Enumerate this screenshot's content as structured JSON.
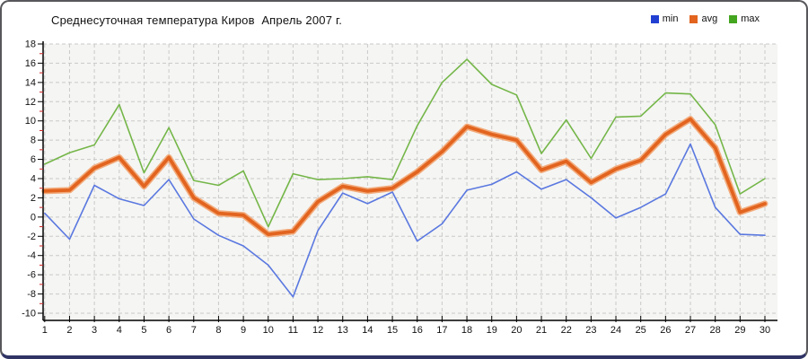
{
  "header": {
    "title": "Среднесуточная температура Киров  Апрель 2007 г."
  },
  "legend": [
    {
      "label": "min",
      "color": "#2140d2"
    },
    {
      "label": "avg",
      "color": "#e2641f"
    },
    {
      "label": "max",
      "color": "#44a51f"
    }
  ],
  "chart_data": {
    "type": "line",
    "title": "Среднесуточная температура Киров  Апрель 2007 г.",
    "x": [
      1,
      2,
      3,
      4,
      5,
      6,
      7,
      8,
      9,
      10,
      11,
      12,
      13,
      14,
      15,
      16,
      17,
      18,
      19,
      20,
      21,
      22,
      23,
      24,
      25,
      26,
      27,
      28,
      29,
      30
    ],
    "series": [
      {
        "name": "min",
        "color": "#5a78e0",
        "width": 1.6,
        "values": [
          0.4,
          -2.3,
          3.3,
          1.9,
          1.2,
          3.9,
          -0.2,
          -1.9,
          -3.0,
          -5.0,
          -8.3,
          -1.4,
          2.5,
          1.4,
          2.6,
          -2.5,
          -0.7,
          2.8,
          3.4,
          4.7,
          2.9,
          3.9,
          2.0,
          -0.1,
          1.0,
          2.4,
          7.6,
          1.0,
          -1.8,
          -1.9
        ]
      },
      {
        "name": "avg",
        "color": "#e2641f",
        "halo": "#f2ab7c",
        "width": 3.8,
        "values": [
          2.7,
          2.8,
          5.1,
          6.2,
          3.2,
          6.2,
          2.0,
          0.4,
          0.2,
          -1.8,
          -1.5,
          1.6,
          3.2,
          2.7,
          3.0,
          4.7,
          6.8,
          9.4,
          8.6,
          8.0,
          4.9,
          5.8,
          3.6,
          5.0,
          5.9,
          8.6,
          10.2,
          7.2,
          0.5,
          1.4
        ]
      },
      {
        "name": "max",
        "color": "#74b648",
        "width": 1.6,
        "values": [
          5.5,
          6.7,
          7.5,
          11.7,
          4.6,
          9.3,
          3.8,
          3.3,
          4.8,
          -1.0,
          4.5,
          3.9,
          4.0,
          4.2,
          3.9,
          9.5,
          14.0,
          16.4,
          13.8,
          12.7,
          6.6,
          10.1,
          6.1,
          10.4,
          10.5,
          12.9,
          12.8,
          9.6,
          2.4,
          4.0
        ]
      }
    ],
    "ylim": [
      -10,
      18
    ],
    "ytick_step": 2,
    "y_ticks": [
      18,
      16,
      14,
      12,
      10,
      8,
      6,
      4,
      2,
      0,
      -2,
      -4,
      -6,
      -8,
      -10
    ],
    "grid": "dashed",
    "grid_color": "#c9c9c9",
    "plot_bg": "#f5f5f3",
    "axis_color": "#000000",
    "minor_tick_color": "#cc2222",
    "legend_position": "top-right",
    "draw_order": [
      "max",
      "min",
      "avg"
    ]
  }
}
